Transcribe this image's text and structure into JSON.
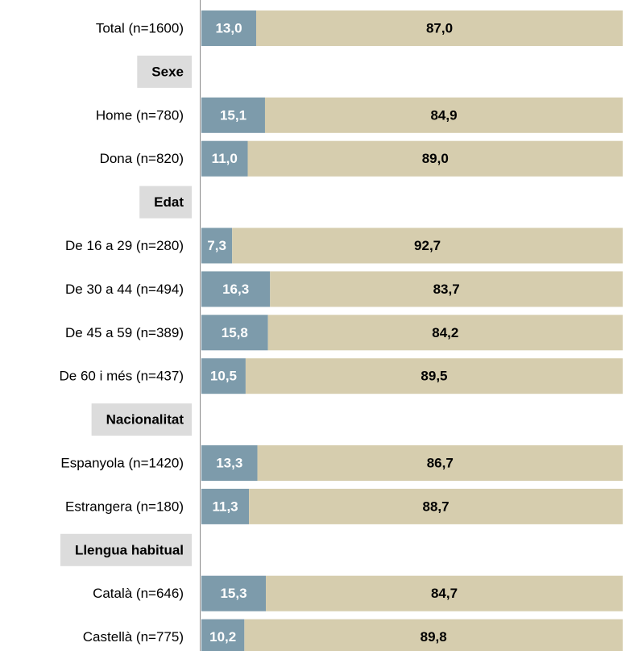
{
  "chart_data": {
    "type": "stacked_bar_horizontal",
    "categories": [
      "Total (n=1600)",
      "Sexe",
      "Home (n=780)",
      "Dona (n=820)",
      "Edat",
      "De 16 a 29 (n=280)",
      "De 30 a 44 (n=494)",
      "De 45 a 59 (n=389)",
      "De 60 i més (n=437)",
      "Nacionalitat",
      "Espanyola (n=1420)",
      "Estrangera (n=180)",
      "Llengua habitual",
      "Català (n=646)",
      "Castellà (n=775)"
    ],
    "series": [
      {
        "color": "#7d9bab",
        "values": [
          13.0,
          null,
          15.1,
          11.0,
          null,
          7.3,
          16.3,
          15.8,
          10.5,
          null,
          13.3,
          11.3,
          null,
          15.3,
          10.2
        ],
        "value_labels": [
          "13,0",
          null,
          "15,1",
          "11,0",
          null,
          "7,3",
          "16,3",
          "15,8",
          "10,5",
          null,
          "13,3",
          "11,3",
          null,
          "15,3",
          "10,2"
        ]
      },
      {
        "color": "#d6cdae",
        "values": [
          87.0,
          null,
          84.9,
          89.0,
          null,
          92.7,
          83.7,
          84.2,
          89.5,
          null,
          86.7,
          88.7,
          null,
          84.7,
          89.8
        ],
        "value_labels": [
          "87,0",
          null,
          "84,9",
          "89,0",
          null,
          "92,7",
          "83,7",
          "84,2",
          "89,5",
          null,
          "86,7",
          "88,7",
          null,
          "84,7",
          "89,8"
        ]
      }
    ],
    "xlim": [
      0,
      100
    ]
  }
}
